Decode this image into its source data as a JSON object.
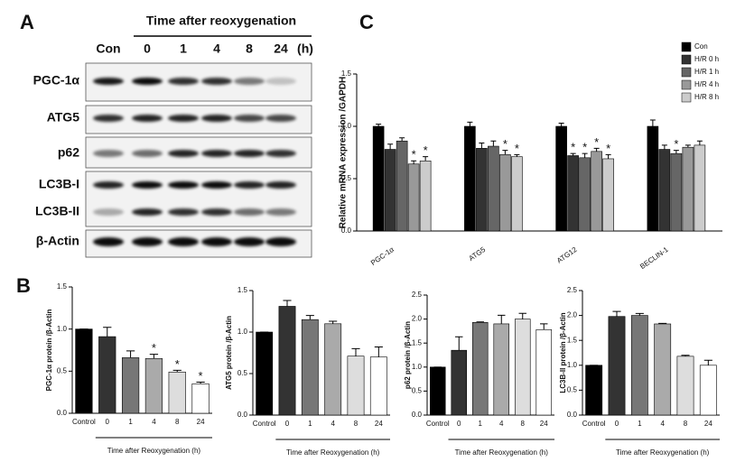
{
  "figure": {
    "panels": [
      "A",
      "B",
      "C"
    ],
    "blot": {
      "title": "Time after reoxygenation",
      "lanes": [
        "Con",
        "0",
        "1",
        "4",
        "8",
        "24",
        "(h)"
      ],
      "rows": [
        "PGC-1α",
        "ATG5",
        "p62",
        "LC3B-I",
        "LC3B-II",
        "β-Actin"
      ]
    }
  },
  "chart_data": [
    {
      "type": "grouped_bar",
      "y_label": "Relative mRNA expression /GAPDH",
      "categories": [
        "PGC-1α",
        "ATG5",
        "ATG12",
        "BECLIN-1"
      ],
      "series": [
        {
          "name": "Con",
          "color": "#000000",
          "values": [
            1.0,
            1.0,
            1.0,
            1.0
          ],
          "errors": [
            0.02,
            0.04,
            0.03,
            0.06
          ],
          "markers": [
            null,
            null,
            null,
            null
          ]
        },
        {
          "name": "H/R 0 h",
          "color": "#333333",
          "values": [
            0.78,
            0.79,
            0.72,
            0.78
          ],
          "errors": [
            0.05,
            0.05,
            0.02,
            0.04
          ],
          "markers": [
            null,
            null,
            "*",
            null
          ]
        },
        {
          "name": "H/R 1 h",
          "color": "#666666",
          "values": [
            0.86,
            0.81,
            0.7,
            0.74
          ],
          "errors": [
            0.03,
            0.05,
            0.04,
            0.03
          ],
          "markers": [
            null,
            null,
            "*",
            "*"
          ]
        },
        {
          "name": "H/R 4 h",
          "color": "#999999",
          "values": [
            0.64,
            0.73,
            0.76,
            0.8
          ],
          "errors": [
            0.03,
            0.04,
            0.03,
            0.02
          ],
          "markers": [
            "*",
            "*",
            "*",
            null
          ]
        },
        {
          "name": "H/R 8 h",
          "color": "#cccccc",
          "values": [
            0.67,
            0.71,
            0.69,
            0.82
          ],
          "errors": [
            0.04,
            0.02,
            0.04,
            0.04
          ],
          "markers": [
            "*",
            "*",
            "*",
            null
          ]
        }
      ],
      "ylim": [
        0,
        1.5
      ],
      "yticks": [
        {
          "value": 0,
          "label": "0.0"
        },
        0.5,
        {
          "value": 1,
          "label": "1.0"
        },
        1.5
      ],
      "legend": "top-right"
    },
    {
      "type": "bar",
      "y_label": "PGC-1α protein /β-Actin",
      "x_label": "Time after Reoxygenation (h)",
      "categories": [
        "Control",
        "0",
        "1",
        "4",
        "8",
        "24"
      ],
      "values": [
        1.0,
        0.91,
        0.66,
        0.65,
        0.49,
        0.35
      ],
      "errors": [
        0,
        0.11,
        0.08,
        0.05,
        0.02,
        0.02
      ],
      "markers": [
        null,
        null,
        null,
        "*",
        "*",
        "*"
      ],
      "colors": [
        "#000000",
        "#333333",
        "#777777",
        "#aaaaaa",
        "#dddddd",
        "#ffffff"
      ],
      "ylim": [
        0,
        1.5
      ],
      "yticks": [
        {
          "value": 0,
          "label": "0.0"
        },
        0.5,
        {
          "value": 1,
          "label": "1.0"
        },
        1.5
      ]
    },
    {
      "type": "bar",
      "y_label": "ATG5 protein /β-Actin",
      "x_label": "Time after Reoxygenation (h)",
      "categories": [
        "Control",
        "0",
        "1",
        "4",
        "8",
        "24"
      ],
      "values": [
        1.0,
        1.31,
        1.15,
        1.1,
        0.71,
        0.7
      ],
      "errors": [
        0,
        0.07,
        0.05,
        0.03,
        0.09,
        0.12
      ],
      "markers": [
        null,
        null,
        null,
        null,
        null,
        null
      ],
      "colors": [
        "#000000",
        "#333333",
        "#777777",
        "#aaaaaa",
        "#dddddd",
        "#ffffff"
      ],
      "ylim": [
        0,
        1.5
      ],
      "yticks": [
        {
          "value": 0,
          "label": "0.0"
        },
        0.5,
        {
          "value": 1,
          "label": "1.0"
        },
        1.5
      ]
    },
    {
      "type": "bar",
      "y_label": "p62 protein /β-Actin",
      "x_label": "Time after Reoxygenation (h)",
      "categories": [
        "Control",
        "0",
        "1",
        "4",
        "8",
        "24"
      ],
      "values": [
        1.0,
        1.35,
        1.93,
        1.9,
        2.0,
        1.78
      ],
      "errors": [
        0,
        0.28,
        0.01,
        0.18,
        0.12,
        0.12
      ],
      "markers": [
        null,
        null,
        null,
        null,
        null,
        null
      ],
      "colors": [
        "#000000",
        "#333333",
        "#777777",
        "#aaaaaa",
        "#dddddd",
        "#ffffff"
      ],
      "ylim": [
        0,
        2.5
      ],
      "yticks": [
        {
          "value": 0,
          "label": "0.0"
        },
        0.5,
        {
          "value": 1,
          "label": "1.0"
        },
        1.5,
        {
          "value": 2,
          "label": "2.0"
        },
        2.5
      ]
    },
    {
      "type": "bar",
      "y_label": "LC3B-II protein /β-Actin",
      "x_label": "Time after Reoxygenation (h)",
      "categories": [
        "Control",
        "0",
        "1",
        "4",
        "8",
        "24"
      ],
      "values": [
        1.0,
        1.98,
        2.0,
        1.83,
        1.18,
        1.0
      ],
      "errors": [
        0,
        0.1,
        0.04,
        0.01,
        0.02,
        0.1
      ],
      "markers": [
        null,
        null,
        null,
        null,
        null,
        null
      ],
      "colors": [
        "#000000",
        "#333333",
        "#777777",
        "#aaaaaa",
        "#dddddd",
        "#ffffff"
      ],
      "ylim": [
        0,
        2.5
      ],
      "yticks": [
        {
          "value": 0,
          "label": "0.0"
        },
        0.5,
        {
          "value": 1,
          "label": "1.0"
        },
        1.5,
        {
          "value": 2,
          "label": "2.0"
        },
        2.5
      ]
    }
  ]
}
